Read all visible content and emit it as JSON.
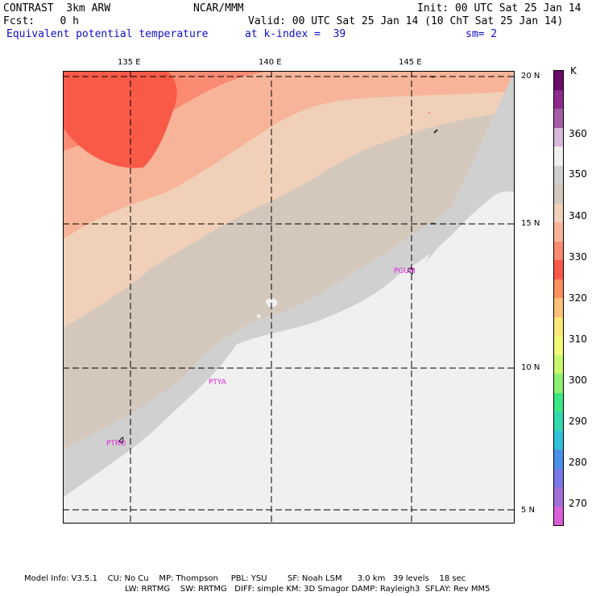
{
  "header": {
    "model": "CONTRAST  3km ARW",
    "org": "NCAR/MMM",
    "init": "Init: 00 UTC Sat 25 Jan 14",
    "fcst": "Fcst:    0 h",
    "valid": "Valid: 00 UTC Sat 25 Jan 14 (10 ChT Sat 25 Jan 14)",
    "field": "Equivalent potential temperature",
    "level": "at k-index =  39",
    "smooth": "sm= 2"
  },
  "map": {
    "lon_labels": [
      "135 E",
      "140 E",
      "145 E"
    ],
    "lat_labels": [
      "20 N",
      "15 N",
      "10 N",
      "5 N"
    ],
    "stations": [
      "PGUM",
      "PTYA",
      "PTRO"
    ]
  },
  "colorbar": {
    "unit": "K",
    "levels": [
      "360",
      "350",
      "340",
      "330",
      "320",
      "310",
      "300",
      "290",
      "280",
      "270"
    ],
    "colors": [
      "#6a0a6a",
      "#8e2a8e",
      "#a65ca6",
      "#d8b8d8",
      "#f0f0f0",
      "#d0d0d0",
      "#d4c8bc",
      "#f0d0b8",
      "#f7b498",
      "#fa8a72",
      "#f95a48",
      "#fa9060",
      "#fcc078",
      "#fce878",
      "#f4fa78",
      "#c8f86c",
      "#8cf070",
      "#3ce884",
      "#32d8b0",
      "#30c0d8",
      "#4a90e8",
      "#7878e8",
      "#a070d8",
      "#d860d8"
    ]
  },
  "footer": {
    "line1": "Model Info: V3.5.1    CU: No Cu    MP: Thompson     PBL: YSU        SF: Noah LSM      3.0 km   39 levels    18 sec",
    "line2": "LW: RRTMG    SW: RRTMG   DIFF: simple KM: 3D Smagor DAMP: Rayleigh3  SFLAY: Rev MM5"
  }
}
